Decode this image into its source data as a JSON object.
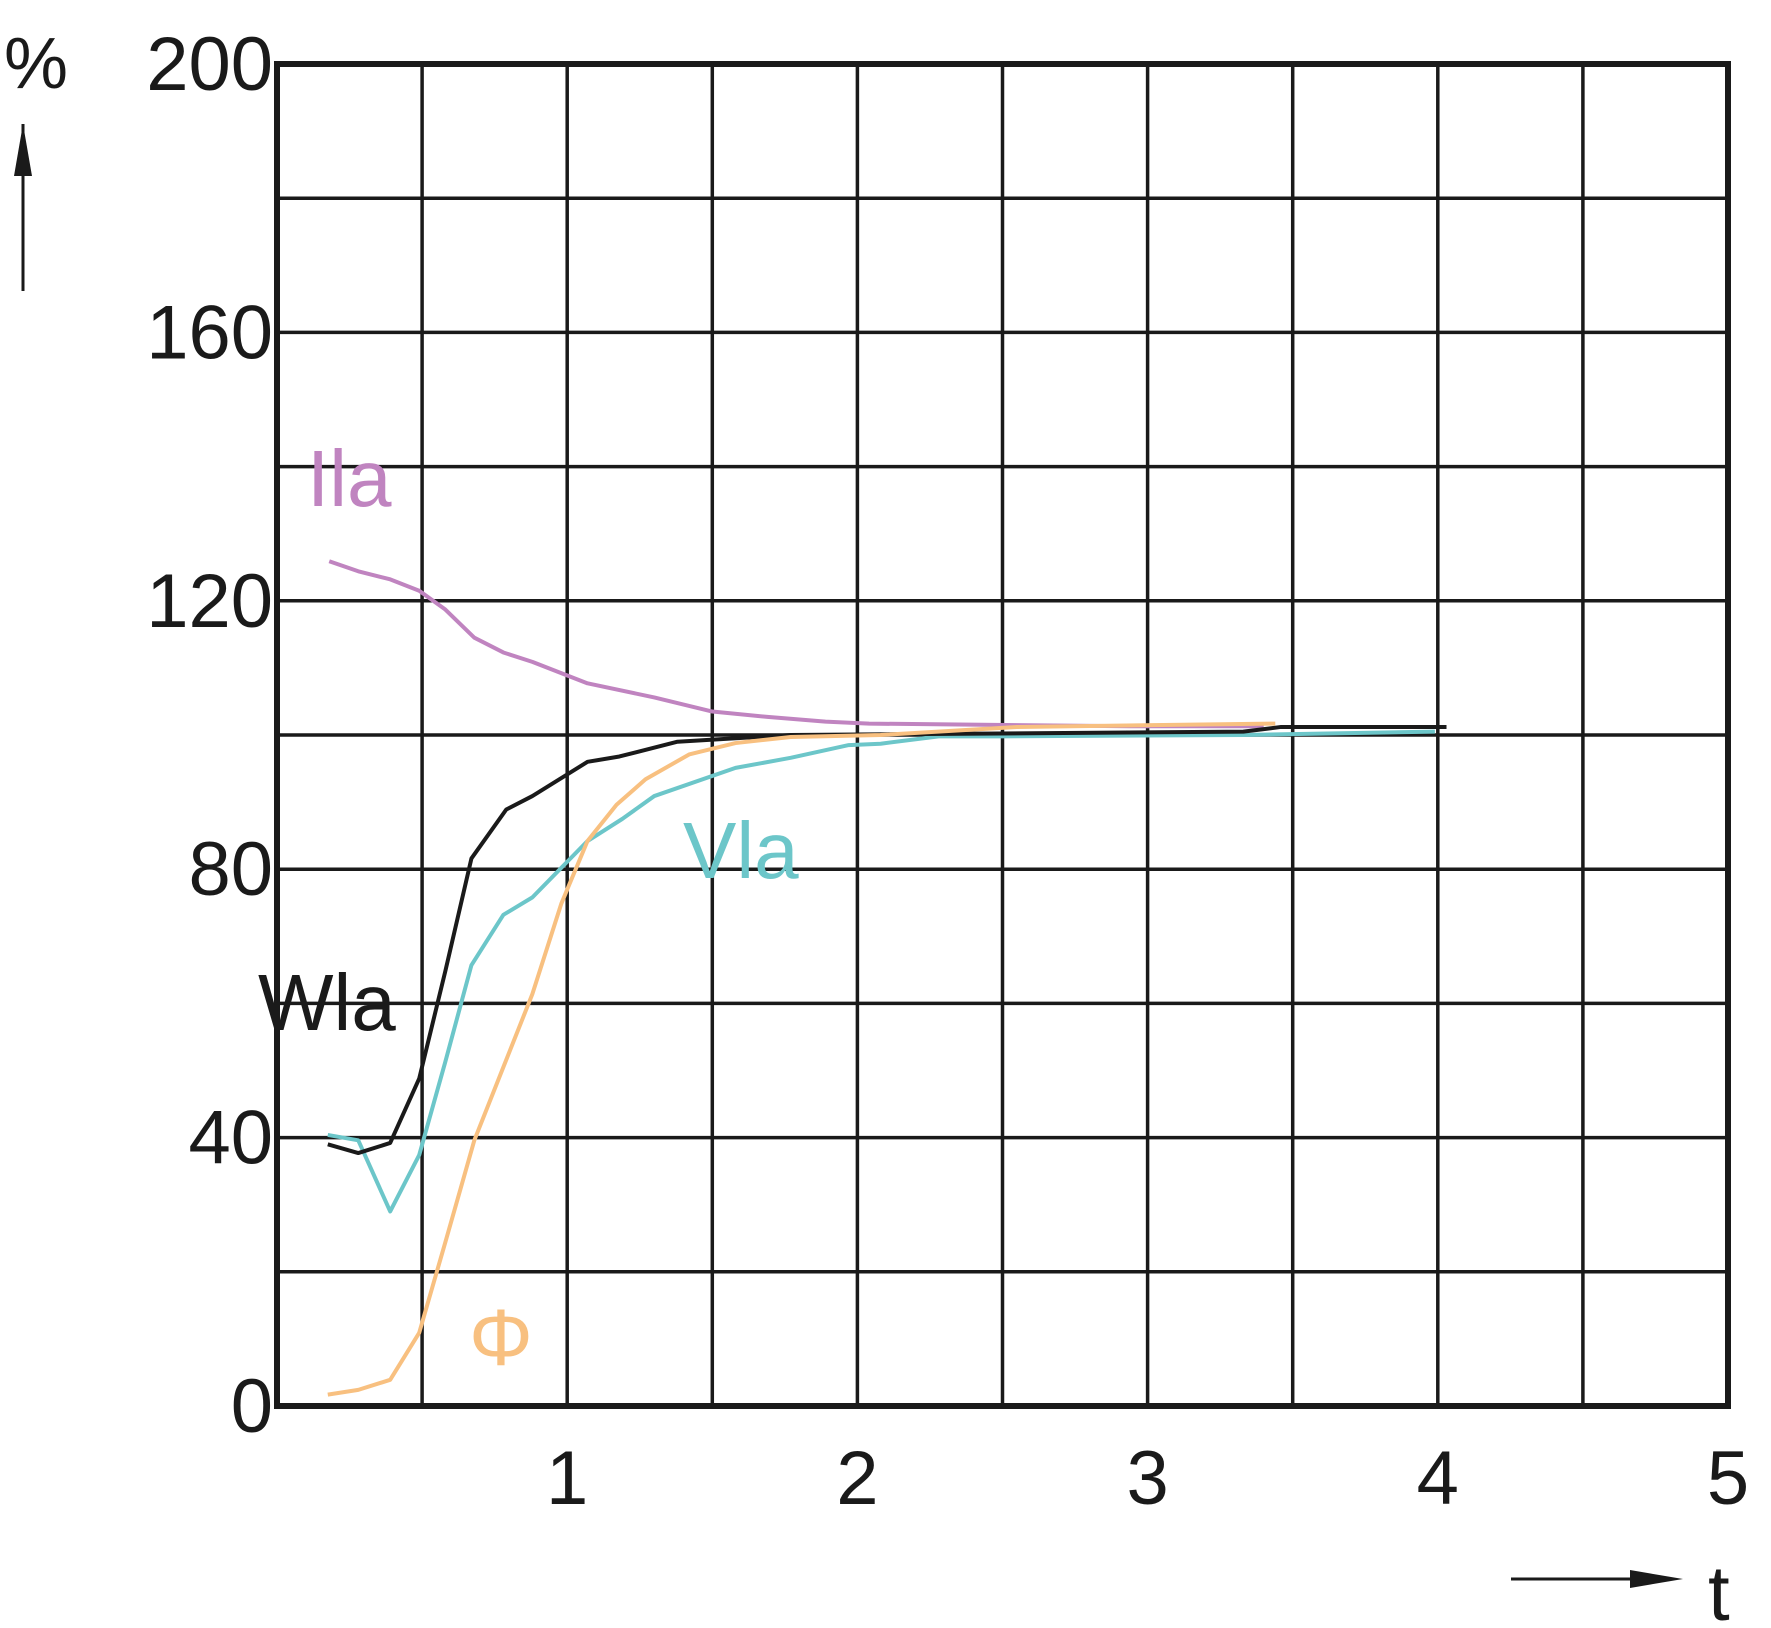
{
  "chart_data": {
    "type": "line",
    "x_label": "t",
    "y_label": "%",
    "xlim": [
      0,
      5
    ],
    "ylim": [
      0,
      200
    ],
    "xticks": [
      1,
      2,
      3,
      4,
      5
    ],
    "yticks": [
      0,
      40,
      80,
      120,
      160,
      200
    ],
    "xgrid": [
      0,
      0.5,
      1,
      1.5,
      2,
      2.5,
      3,
      3.5,
      4,
      4.5,
      5
    ],
    "ygrid": [
      0,
      20,
      40,
      60,
      80,
      100,
      120,
      140,
      160,
      180,
      200
    ],
    "series": [
      {
        "name": "Ila",
        "color": "#c084c0",
        "x": [
          0.18,
          0.28,
          0.39,
          0.49,
          0.58,
          0.68,
          0.78,
          0.88,
          1.07,
          1.3,
          1.5,
          1.69,
          1.89,
          2.04,
          2.47,
          2.94,
          3.4
        ],
        "values": [
          125.9,
          124.4,
          123.2,
          121.5,
          118.7,
          114.5,
          112.3,
          110.9,
          107.7,
          105.6,
          103.5,
          102.7,
          102,
          101.7,
          101.5,
          101.3,
          101.3
        ]
      },
      {
        "name": "Vla",
        "color": "#6cc6c9",
        "x": [
          0.175,
          0.28,
          0.39,
          0.49,
          0.58,
          0.67,
          0.78,
          0.88,
          1.07,
          1.19,
          1.3,
          1.58,
          1.77,
          1.97,
          2.08,
          2.28,
          2.48,
          3.33,
          3.99
        ],
        "values": [
          40.4,
          39.6,
          29,
          37.4,
          51.3,
          65.7,
          73.2,
          75.8,
          84.2,
          87.5,
          90.9,
          95.1,
          96.6,
          98.5,
          98.7,
          99.8,
          99.8,
          100,
          100.5
        ]
      },
      {
        "name": "Wla",
        "color": "#1a1a1a",
        "x": [
          0.175,
          0.28,
          0.39,
          0.49,
          0.58,
          0.67,
          0.79,
          0.88,
          1.07,
          1.18,
          1.38,
          1.77,
          3.33,
          3.46,
          4.03
        ],
        "values": [
          39,
          37.7,
          39.2,
          48.8,
          64.8,
          81.6,
          88.9,
          90.9,
          96,
          96.8,
          99,
          100,
          100.5,
          101.2,
          101.2
        ]
      },
      {
        "name": "Φ",
        "color": "#f8c080",
        "x": [
          0.175,
          0.28,
          0.39,
          0.49,
          0.58,
          0.68,
          0.78,
          0.88,
          0.98,
          1.07,
          1.17,
          1.27,
          1.42,
          1.58,
          1.77,
          2.08,
          2.55,
          3.44
        ],
        "values": [
          1.7,
          2.4,
          3.9,
          10.9,
          24.4,
          39.6,
          50.5,
          61.4,
          74.9,
          84.2,
          89.6,
          93.4,
          97.1,
          98.8,
          99.7,
          100,
          101.2,
          101.7
        ]
      }
    ]
  }
}
